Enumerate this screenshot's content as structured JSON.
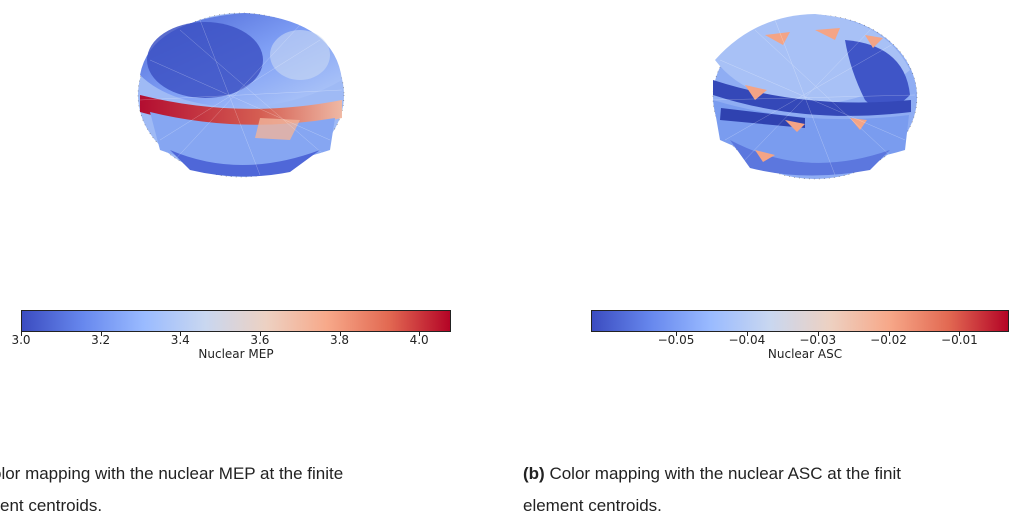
{
  "figures": [
    {
      "id": "a",
      "caption_label": "",
      "caption_text": "olor mapping with the nuclear MEP at the finite",
      "caption_line2": "ent centroids.",
      "colorbar": {
        "label": "Nuclear MEP",
        "min": 3.0,
        "max": 4.08,
        "ticks": [
          "3.0",
          "3.2",
          "3.4",
          "3.6",
          "3.8",
          "4.0"
        ],
        "tick_values": [
          3.0,
          3.2,
          3.4,
          3.6,
          3.8,
          4.0
        ],
        "colormap": "coolwarm"
      }
    },
    {
      "id": "b",
      "caption_label": "(b)",
      "caption_text": "Color mapping with the nuclear ASC at the finit",
      "caption_line2": "element centroids.",
      "colorbar": {
        "label": "Nuclear ASC",
        "min": -0.062,
        "max": -0.003,
        "ticks": [
          "−0.05",
          "−0.04",
          "−0.03",
          "−0.02",
          "−0.01"
        ],
        "tick_values": [
          -0.05,
          -0.04,
          -0.03,
          -0.02,
          -0.01
        ],
        "colormap": "coolwarm"
      }
    }
  ],
  "colors": {
    "cool": "#3b4cc0",
    "mid": "#dddddd",
    "warm": "#b40426"
  }
}
